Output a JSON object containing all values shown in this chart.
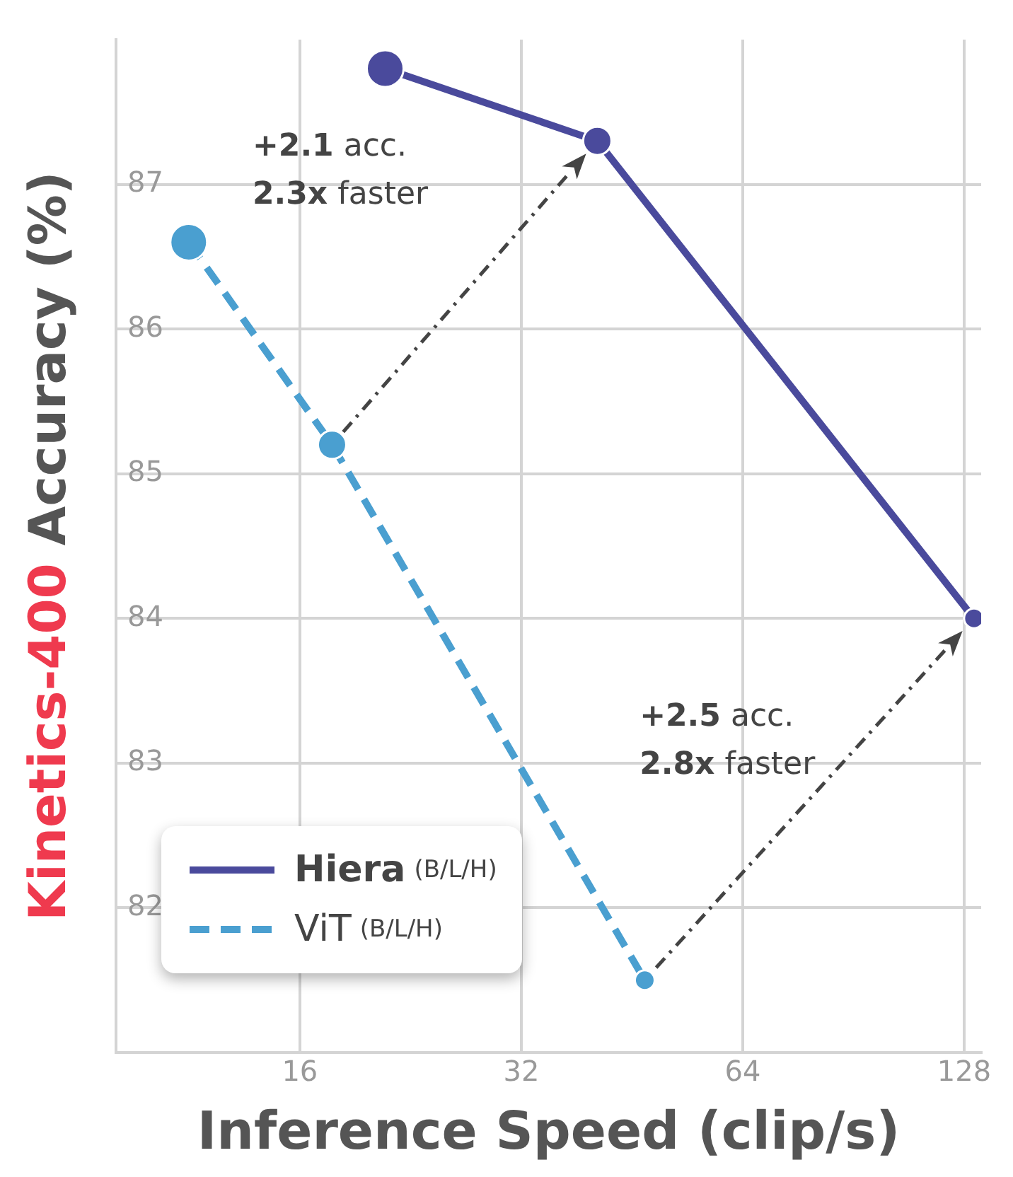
{
  "chart_data": {
    "type": "line",
    "xlabel": "Inference Speed (clip/s)",
    "ylabel": "Kinetics-400 Accuracy (%)",
    "log": "x",
    "xlim": [
      9,
      135
    ],
    "xticks": [
      16,
      32,
      64,
      128
    ],
    "ylim": [
      81,
      88
    ],
    "yticks": [
      82,
      83,
      84,
      85,
      86,
      87
    ],
    "grid": true,
    "legend": "bottom left",
    "marker": "circle",
    "series": [
      {
        "name": "Hiera (B/L/H)",
        "color": "#4a4a9c",
        "line_style": "solid",
        "x": [
          20.9,
          40.6,
          132
        ],
        "values": [
          87.8,
          87.3,
          84.0
        ]
      },
      {
        "name": "ViT (B/L/H)",
        "color": "#4a9fd0",
        "line_style": "dashed",
        "x": [
          11.3,
          17.7,
          47.1
        ],
        "values": [
          86.6,
          85.2,
          81.5
        ]
      }
    ],
    "annotations": [
      "+2.1 acc.\n2.3x faster",
      "+2.5 acc.\n2.8x faster"
    ]
  }
}
